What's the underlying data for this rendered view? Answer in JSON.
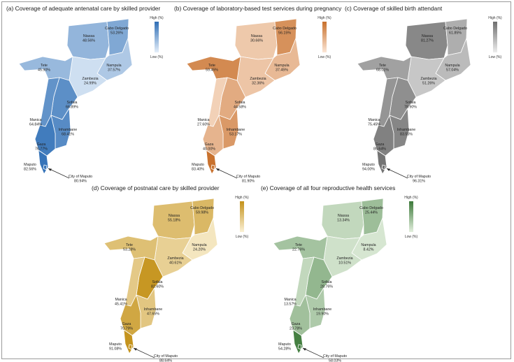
{
  "panels": [
    {
      "title": "(a) Coverage of adequate antenatal care by skilled provider",
      "color_high": "#2f6fb6",
      "color_low": "#e4eef9",
      "legend_high": "High (%)",
      "legend_low": "Low (%)",
      "regions": [
        {
          "name": "Niassa",
          "value": "48.56%",
          "level": 0.45
        },
        {
          "name": "Cabo Delgado",
          "value": "53.26%",
          "level": 0.55
        },
        {
          "name": "Nampula",
          "value": "37.57%",
          "level": 0.3
        },
        {
          "name": "Zambezia",
          "value": "24.99%",
          "level": 0.12
        },
        {
          "name": "Tete",
          "value": "45.90%",
          "level": 0.42
        },
        {
          "name": "Sofala",
          "value": "66.89%",
          "level": 0.75
        },
        {
          "name": "Manica",
          "value": "64.84%",
          "level": 0.72
        },
        {
          "name": "Inhambane",
          "value": "68.41%",
          "level": 0.78
        },
        {
          "name": "Gaza",
          "value": "76.77%",
          "level": 0.9
        },
        {
          "name": "Maputo",
          "value": "82.56%",
          "level": 0.96
        },
        {
          "name": "City of Maputo",
          "value": "80.94%",
          "level": 0.95
        }
      ]
    },
    {
      "title": "(b) Coverage of laboratory-based test services during pregnancy",
      "color_high": "#c8702b",
      "color_low": "#fbe6d6",
      "legend_high": "High (%)",
      "legend_low": "Low (%)",
      "regions": [
        {
          "name": "Niassa",
          "value": "30.66%",
          "level": 0.25
        },
        {
          "name": "Cabo Delgado",
          "value": "56.15%",
          "level": 0.72
        },
        {
          "name": "Nampula",
          "value": "37.45%",
          "level": 0.38
        },
        {
          "name": "Zambezia",
          "value": "32.36%",
          "level": 0.28
        },
        {
          "name": "Tete",
          "value": "59.45%",
          "level": 0.78
        },
        {
          "name": "Sofala",
          "value": "44.58%",
          "level": 0.5
        },
        {
          "name": "Manica",
          "value": "27.60%",
          "level": 0.18
        },
        {
          "name": "Inhambane",
          "value": "53.17%",
          "level": 0.65
        },
        {
          "name": "Gaza",
          "value": "40.00%",
          "level": 0.42
        },
        {
          "name": "Maputo",
          "value": "83.40%",
          "level": 0.98
        },
        {
          "name": "City of Maputo",
          "value": "81.90%",
          "level": 0.96
        }
      ]
    },
    {
      "title": "(c) Coverage of skilled birth attendant",
      "color_high": "#6f6f6f",
      "color_low": "#ededed",
      "legend_high": "High (%)",
      "legend_low": "Low (%)",
      "regions": [
        {
          "name": "Niassa",
          "value": "81.27%",
          "level": 0.8
        },
        {
          "name": "Cabo Delgado",
          "value": "61.85%",
          "level": 0.5
        },
        {
          "name": "Nampula",
          "value": "57.04%",
          "level": 0.4
        },
        {
          "name": "Zambezia",
          "value": "51.26%",
          "level": 0.3
        },
        {
          "name": "Tete",
          "value": "68.01%",
          "level": 0.6
        },
        {
          "name": "Sofala",
          "value": "78.90%",
          "level": 0.75
        },
        {
          "name": "Manica",
          "value": "75.45%",
          "level": 0.7
        },
        {
          "name": "Inhambane",
          "value": "83.55%",
          "level": 0.82
        },
        {
          "name": "Gaza",
          "value": "85.64%",
          "level": 0.86
        },
        {
          "name": "Maputo",
          "value": "94.00%",
          "level": 0.96
        },
        {
          "name": "City of Maputo",
          "value": "96.31%",
          "level": 0.98
        }
      ]
    },
    {
      "title": "(d) Coverage of postnatal care by skilled provider",
      "color_high": "#c4921a",
      "color_low": "#fbf1d6",
      "legend_high": "High (%)",
      "legend_low": "Low (%)",
      "regions": [
        {
          "name": "Niassa",
          "value": "55.18%",
          "level": 0.55
        },
        {
          "name": "Cabo Delgado",
          "value": "59.98%",
          "level": 0.6
        },
        {
          "name": "Nampula",
          "value": "24.20%",
          "level": 0.12
        },
        {
          "name": "Zambezia",
          "value": "40.61%",
          "level": 0.35
        },
        {
          "name": "Tete",
          "value": "53.28%",
          "level": 0.52
        },
        {
          "name": "Sofala",
          "value": "82.60%",
          "level": 0.95
        },
        {
          "name": "Manica",
          "value": "45.41%",
          "level": 0.42
        },
        {
          "name": "Inhambane",
          "value": "47.65%",
          "level": 0.45
        },
        {
          "name": "Gaza",
          "value": "70.79%",
          "level": 0.78
        },
        {
          "name": "Maputo",
          "value": "91.08%",
          "level": 0.98
        },
        {
          "name": "City of Maputo",
          "value": "88.64%",
          "level": 0.96
        }
      ]
    },
    {
      "title": "(e) Coverage of all four reproductive health services",
      "color_high": "#3d7a3a",
      "color_low": "#e3efde",
      "legend_high": "High (%)",
      "legend_low": "Low (%)",
      "regions": [
        {
          "name": "Niassa",
          "value": "13.34%",
          "level": 0.2
        },
        {
          "name": "Cabo Delgado",
          "value": "25.44%",
          "level": 0.42
        },
        {
          "name": "Nampula",
          "value": "8.42%",
          "level": 0.08
        },
        {
          "name": "Zambezia",
          "value": "10.51%",
          "level": 0.12
        },
        {
          "name": "Tete",
          "value": "22.76%",
          "level": 0.38
        },
        {
          "name": "Sofala",
          "value": "28.76%",
          "level": 0.48
        },
        {
          "name": "Manica",
          "value": "13.57%",
          "level": 0.2
        },
        {
          "name": "Inhambane",
          "value": "19.90%",
          "level": 0.32
        },
        {
          "name": "Gaza",
          "value": "23.78%",
          "level": 0.4
        },
        {
          "name": "Maputo",
          "value": "54.28%",
          "level": 0.95
        },
        {
          "name": "City of Maputo",
          "value": "58.03%",
          "level": 0.98
        }
      ]
    }
  ]
}
